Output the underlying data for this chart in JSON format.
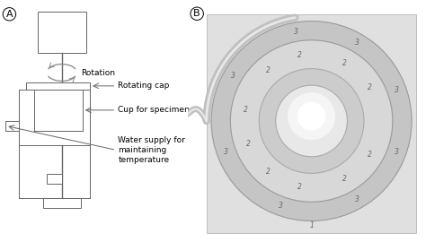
{
  "panel_A_label": "A",
  "panel_B_label": "B",
  "bg_color": "#ffffff",
  "diagram_color": "#666666",
  "labels": {
    "rotation": "Rotation",
    "rotating_cap": "Rotating cap",
    "cup_for_specimen": "Cup for specimen",
    "water_supply": "Water supply for\nmaintaining\ntemperature"
  },
  "font_size": 6.5,
  "panel_label_size": 8
}
